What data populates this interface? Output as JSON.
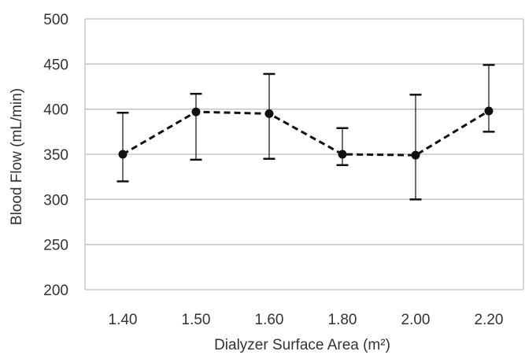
{
  "chart_data": {
    "type": "line",
    "title": "",
    "xlabel": "Dialyzer Surface Area (m²)",
    "ylabel": "Blood Flow (mL/min)",
    "categories": [
      "1.40",
      "1.50",
      "1.60",
      "1.80",
      "2.00",
      "2.20"
    ],
    "series": [
      {
        "values": [
          350,
          397,
          395,
          350,
          349,
          398
        ],
        "error_low": [
          320,
          344,
          345,
          338,
          300,
          375
        ],
        "error_high": [
          396,
          417,
          439,
          379,
          416,
          449
        ]
      }
    ],
    "ylim": [
      200,
      500
    ],
    "yticks": [
      "200",
      "250",
      "300",
      "350",
      "400",
      "450",
      "500"
    ],
    "grid": true,
    "line_style": "dashed",
    "colors": {
      "series": "#111111",
      "grid": "#bfbfbf",
      "text": "#333333"
    }
  }
}
